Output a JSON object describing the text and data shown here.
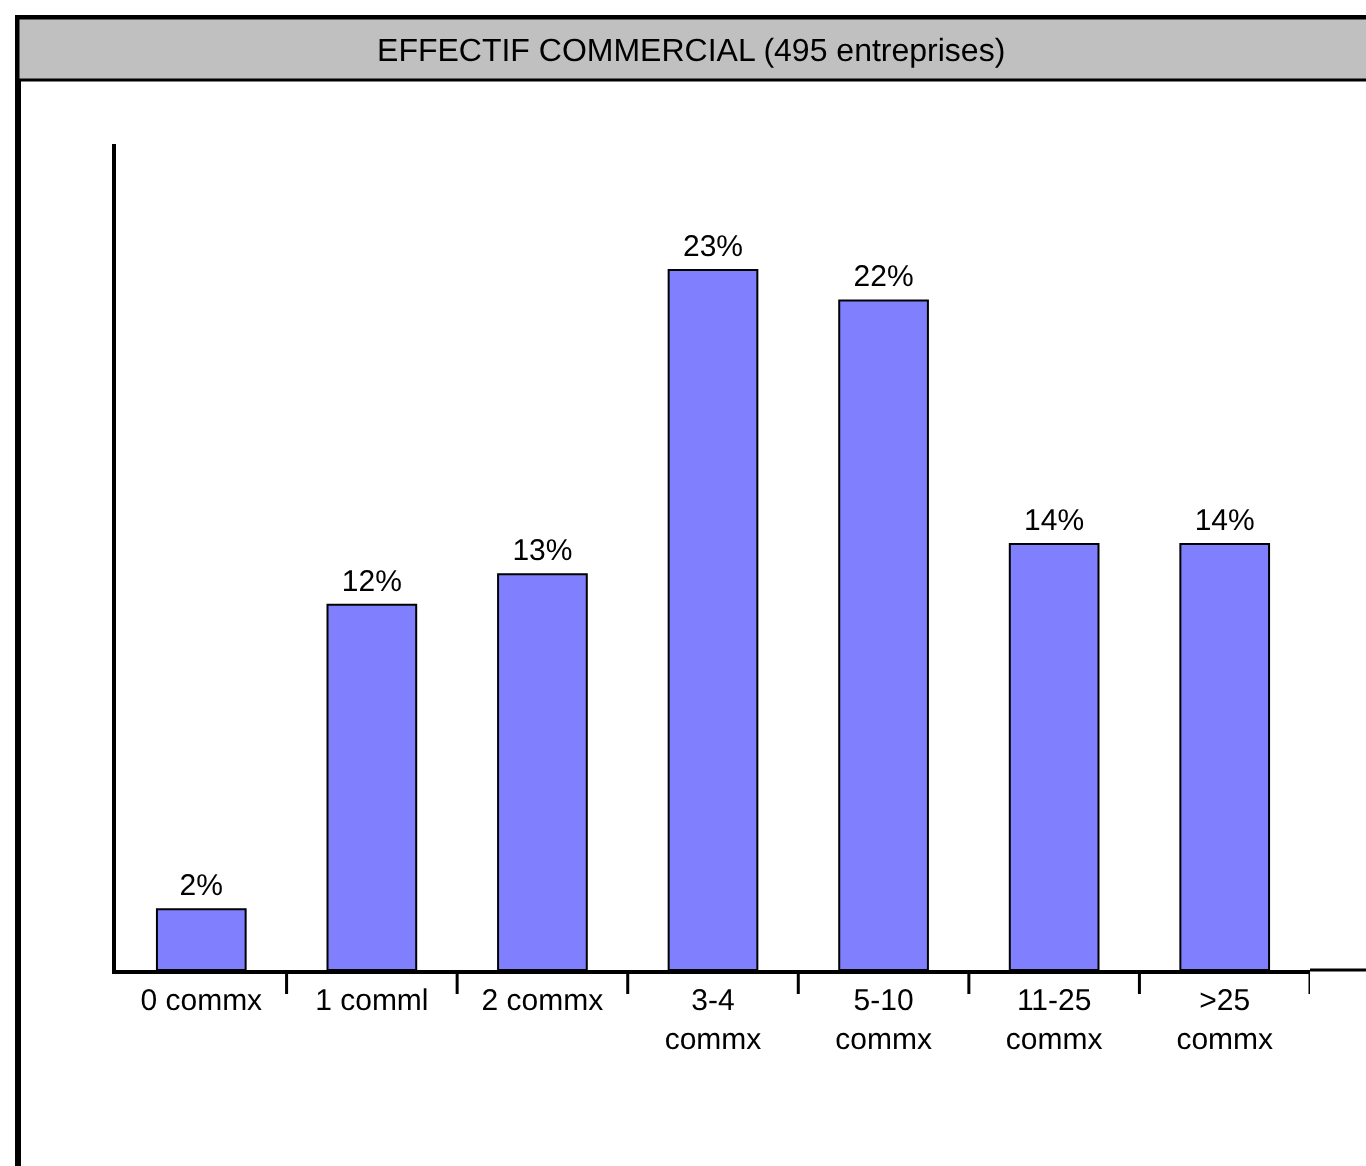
{
  "chart_data": {
    "type": "bar",
    "title": "EFFECTIF COMMERCIAL (495 entreprises)",
    "categories": [
      "0 commx",
      "1 comml",
      "2 commx",
      "3-4\ncommx",
      "5-10\ncommx",
      "11-25\ncommx",
      ">25\ncommx"
    ],
    "values": [
      2,
      12,
      13,
      23,
      22,
      14,
      14
    ],
    "value_labels": [
      "2%",
      "12%",
      "13%",
      "23%",
      "22%",
      "14%",
      "14%"
    ],
    "color": "#8080ff",
    "tick_labels": "x"
  }
}
